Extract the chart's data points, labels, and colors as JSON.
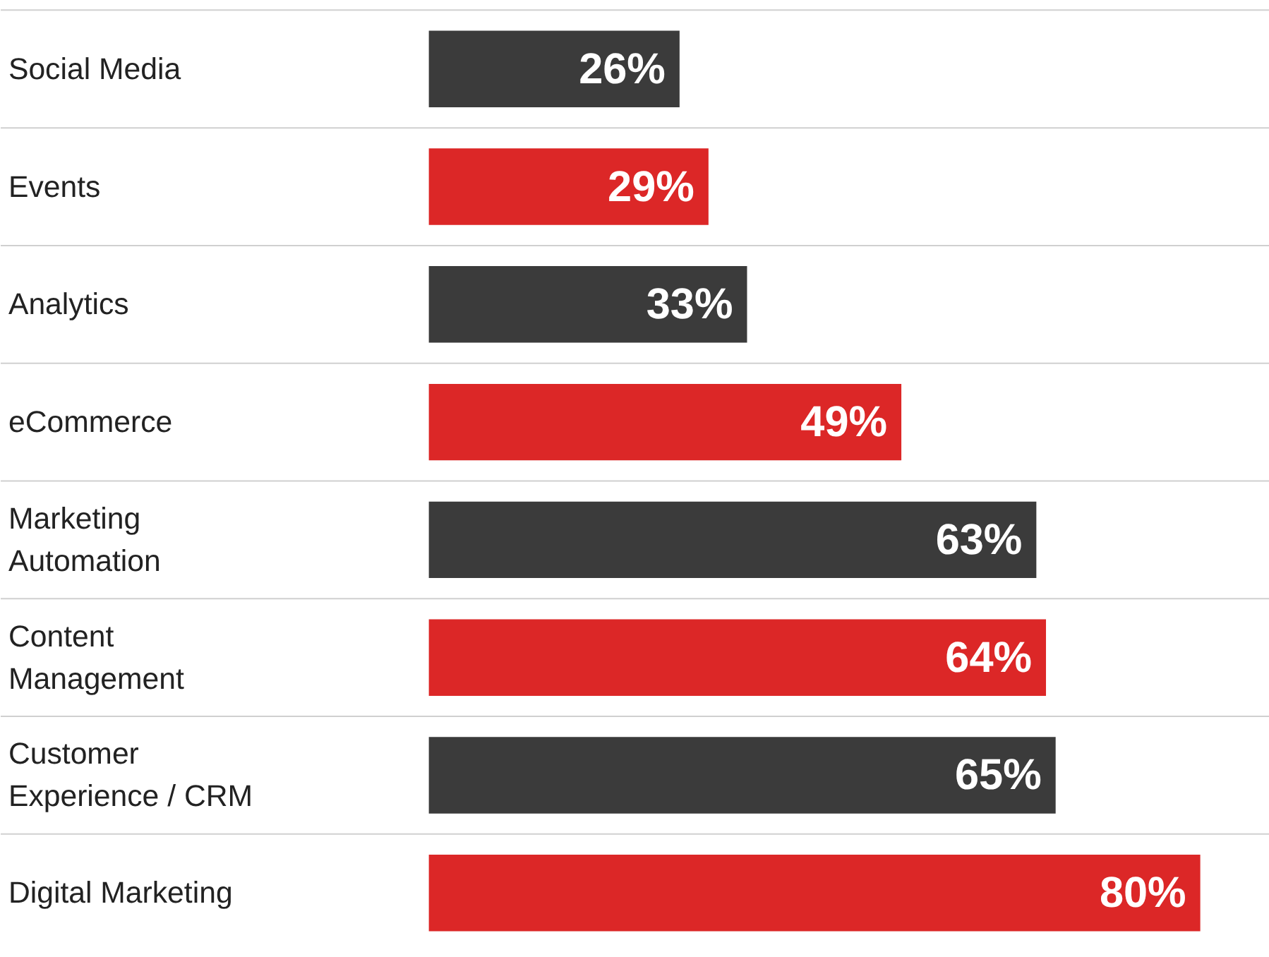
{
  "chart_data": {
    "type": "bar",
    "orientation": "horizontal",
    "categories": [
      "Social Media",
      "Events",
      "Analytics",
      "eCommerce",
      "Marketing\nAutomation",
      "Content\nManagement",
      "Customer\nExperience / CRM",
      "Digital Marketing"
    ],
    "values": [
      26,
      29,
      33,
      49,
      63,
      64,
      65,
      80
    ],
    "value_labels": [
      "26%",
      "29%",
      "33%",
      "49%",
      "63%",
      "64%",
      "65%",
      "80%"
    ],
    "colors": [
      "#3b3b3b",
      "#dc2727",
      "#3b3b3b",
      "#dc2727",
      "#3b3b3b",
      "#dc2727",
      "#3b3b3b",
      "#dc2727"
    ],
    "grid": "y"
  }
}
